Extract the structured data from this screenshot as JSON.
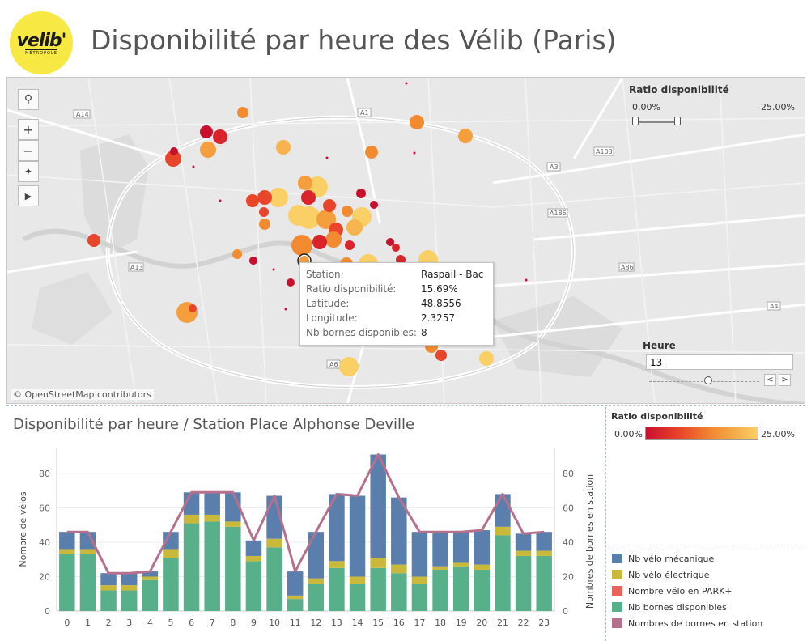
{
  "header": {
    "logo_text": "velib'",
    "logo_sub": "MÉTROPOLE",
    "title": "Disponibilité par heure des Vélib (Paris)"
  },
  "map": {
    "attribution": "© OpenStreetMap contributors",
    "road_labels": [
      "A14",
      "A1",
      "A103",
      "A3",
      "A186",
      "A13",
      "A86",
      "A4",
      "A6"
    ],
    "tools": [
      "search-icon",
      "zoom-in-icon",
      "zoom-out-icon",
      "pin-off-icon",
      "play-icon"
    ],
    "stations": [
      {
        "lat_rank": 1,
        "ratio": 0.18,
        "size": 12
      },
      {
        "lat_rank": 2,
        "ratio": 0.05,
        "size": 10
      }
    ],
    "ratio_filter": {
      "label": "Ratio disponibilité",
      "min": "0.00%",
      "max": "25.00%"
    },
    "heure_filter": {
      "label": "Heure",
      "value": "13",
      "prev": "<",
      "next": ">",
      "level": 0.54
    },
    "tooltip": {
      "rows": [
        {
          "key": "Station:",
          "value": "Raspail - Bac"
        },
        {
          "key": "Ratio disponibilité:",
          "value": "15.69%"
        },
        {
          "key": "Latitude:",
          "value": "48.8556"
        },
        {
          "key": "Longitude:",
          "value": "2.3257"
        },
        {
          "key": "Nb bornes disponibles:",
          "value": "8"
        }
      ]
    }
  },
  "color_legend": {
    "label": "Ratio disponibilité",
    "min": "0.00%",
    "max": "25.00%",
    "colors": [
      "#c8102e",
      "#f9cf66"
    ]
  },
  "chart_data": {
    "type": "bar",
    "title": "Disponibilité par heure / Station Place Alphonse Deville",
    "ylabel": "Nombre de vélos",
    "y2label": "Nombres de bornes en station",
    "ylim": [
      0,
      95
    ],
    "y2lim": [
      0,
      95
    ],
    "yticks": [
      0,
      20,
      40,
      60,
      80
    ],
    "categories": [
      "0",
      "1",
      "2",
      "3",
      "4",
      "5",
      "6",
      "7",
      "8",
      "9",
      "10",
      "11",
      "12",
      "13",
      "14",
      "15",
      "16",
      "17",
      "18",
      "19",
      "20",
      "21",
      "22",
      "23"
    ],
    "series": [
      {
        "name": "Nb vélo mécanique",
        "color": "#5b7fad",
        "values": [
          10,
          10,
          7,
          7,
          3,
          10,
          13,
          13,
          17,
          9,
          25,
          14,
          27,
          39,
          47,
          60,
          39,
          26,
          20,
          18,
          20,
          19,
          10,
          11
        ]
      },
      {
        "name": "Nb vélo électrique",
        "color": "#c8b93a",
        "values": [
          3,
          3,
          3,
          3,
          2,
          5,
          5,
          4,
          3,
          3,
          5,
          2,
          3,
          4,
          4,
          6,
          5,
          4,
          2,
          2,
          3,
          5,
          3,
          3
        ]
      },
      {
        "name": "Nombre vélo en PARK+",
        "color": "#e8645a",
        "values": [
          0,
          0,
          0,
          0,
          0,
          0,
          0,
          0,
          0,
          0,
          0,
          0,
          0,
          0,
          0,
          0,
          0,
          0,
          0,
          0,
          0,
          0,
          0,
          0
        ]
      },
      {
        "name": "Nb bornes disponibles",
        "color": "#58b08a",
        "values": [
          33,
          33,
          12,
          12,
          18,
          31,
          51,
          52,
          49,
          29,
          37,
          7,
          16,
          25,
          16,
          25,
          22,
          16,
          24,
          26,
          24,
          44,
          32,
          32
        ]
      }
    ],
    "line": {
      "name": "Nombres de bornes en station",
      "color": "#b5708e",
      "values": [
        46,
        46,
        22,
        22,
        23,
        46,
        69,
        69,
        69,
        41,
        67,
        23,
        46,
        68,
        67,
        91,
        66,
        46,
        46,
        46,
        47,
        68,
        45,
        46
      ]
    }
  }
}
